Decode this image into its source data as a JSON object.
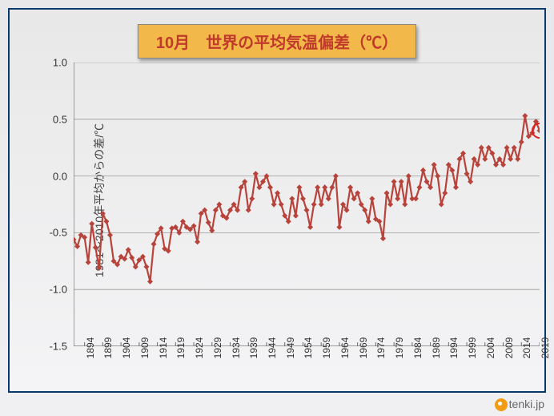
{
  "chart": {
    "type": "line",
    "title": "10月　世界の平均気温偏差（℃）",
    "title_bg": "#f2b84a",
    "title_color": "#c0392b",
    "title_fontsize": 20,
    "ylabel": "1981～2010年平均からの差/℃",
    "ylabel_fontsize": 14,
    "background_gradient": [
      "#e8e8e8",
      "#f4f4f6"
    ],
    "frame_border": "#0a3a6b",
    "line_color": "#b8433b",
    "line_width": 2.2,
    "marker_color": "#b8433b",
    "marker_size": 3.5,
    "highlight_circle_color": "#e02020",
    "highlight_circle_width": 2,
    "gridline_color": "#9a9a9a",
    "axis_color": "#6a6a6a",
    "ylim": [
      -1.5,
      1.0
    ],
    "yticks": [
      -1.5,
      -1.0,
      -0.5,
      0.0,
      0.5,
      1.0
    ],
    "xlim": [
      1891,
      2019
    ],
    "xticks": [
      1894,
      1899,
      1904,
      1909,
      1914,
      1919,
      1924,
      1929,
      1934,
      1939,
      1944,
      1949,
      1954,
      1959,
      1964,
      1969,
      1974,
      1979,
      1984,
      1989,
      1994,
      1999,
      2004,
      2009,
      2014,
      2019
    ],
    "years": [
      1891,
      1892,
      1893,
      1894,
      1895,
      1896,
      1897,
      1898,
      1899,
      1900,
      1901,
      1902,
      1903,
      1904,
      1905,
      1906,
      1907,
      1908,
      1909,
      1910,
      1911,
      1912,
      1913,
      1914,
      1915,
      1916,
      1917,
      1918,
      1919,
      1920,
      1921,
      1922,
      1923,
      1924,
      1925,
      1926,
      1927,
      1928,
      1929,
      1930,
      1931,
      1932,
      1933,
      1934,
      1935,
      1936,
      1937,
      1938,
      1939,
      1940,
      1941,
      1942,
      1943,
      1944,
      1945,
      1946,
      1947,
      1948,
      1949,
      1950,
      1951,
      1952,
      1953,
      1954,
      1955,
      1956,
      1957,
      1958,
      1959,
      1960,
      1961,
      1962,
      1963,
      1964,
      1965,
      1966,
      1967,
      1968,
      1969,
      1970,
      1971,
      1972,
      1973,
      1974,
      1975,
      1976,
      1977,
      1978,
      1979,
      1980,
      1981,
      1982,
      1983,
      1984,
      1985,
      1986,
      1987,
      1988,
      1989,
      1990,
      1991,
      1992,
      1993,
      1994,
      1995,
      1996,
      1997,
      1998,
      1999,
      2000,
      2001,
      2002,
      2003,
      2004,
      2005,
      2006,
      2007,
      2008,
      2009,
      2010,
      2011,
      2012,
      2013,
      2014,
      2015,
      2016,
      2017,
      2018,
      2019
    ],
    "values": [
      -0.56,
      -0.62,
      -0.52,
      -0.54,
      -0.76,
      -0.42,
      -0.63,
      -0.81,
      -0.33,
      -0.4,
      -0.52,
      -0.75,
      -0.78,
      -0.71,
      -0.73,
      -0.65,
      -0.72,
      -0.8,
      -0.74,
      -0.71,
      -0.8,
      -0.93,
      -0.6,
      -0.51,
      -0.46,
      -0.64,
      -0.66,
      -0.46,
      -0.45,
      -0.5,
      -0.4,
      -0.45,
      -0.47,
      -0.44,
      -0.58,
      -0.33,
      -0.3,
      -0.41,
      -0.48,
      -0.3,
      -0.25,
      -0.35,
      -0.37,
      -0.3,
      -0.25,
      -0.3,
      -0.1,
      -0.05,
      -0.3,
      -0.2,
      0.02,
      -0.1,
      -0.05,
      0.0,
      -0.1,
      -0.25,
      -0.15,
      -0.25,
      -0.35,
      -0.4,
      -0.2,
      -0.35,
      -0.1,
      -0.2,
      -0.3,
      -0.45,
      -0.25,
      -0.1,
      -0.25,
      -0.1,
      -0.2,
      -0.1,
      0.0,
      -0.45,
      -0.25,
      -0.3,
      -0.1,
      -0.2,
      -0.15,
      -0.25,
      -0.3,
      -0.4,
      -0.2,
      -0.38,
      -0.4,
      -0.55,
      -0.15,
      -0.25,
      -0.05,
      -0.2,
      -0.05,
      -0.25,
      0.0,
      -0.2,
      -0.2,
      -0.1,
      0.05,
      -0.05,
      -0.1,
      0.1,
      0.0,
      -0.25,
      -0.15,
      0.1,
      0.05,
      -0.1,
      0.15,
      0.2,
      0.02,
      -0.05,
      0.15,
      0.1,
      0.25,
      0.15,
      0.25,
      0.2,
      0.1,
      0.15,
      0.1,
      0.25,
      0.15,
      0.25,
      0.15,
      0.3,
      0.53,
      0.35,
      0.38,
      0.48,
      0.4
    ],
    "highlight_index": 128
  },
  "attribution": {
    "text": "tenki.jp",
    "icon_color": "#f39c12"
  }
}
